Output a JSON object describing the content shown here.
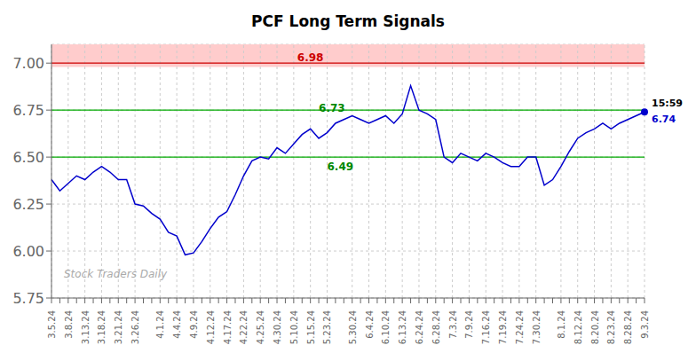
{
  "chart_data": {
    "type": "line",
    "title": "PCF Long Term Signals",
    "watermark": "Stock Traders Daily",
    "categories": [
      "3.5.24",
      null,
      "3.8.24",
      null,
      "3.13.24",
      null,
      "3.18.24",
      null,
      "3.21.24",
      null,
      "3.26.24",
      null,
      null,
      "4.1.24",
      null,
      "4.4.24",
      null,
      "4.9.24",
      null,
      "4.12.24",
      null,
      "4.17.24",
      null,
      "4.22.24",
      null,
      "4.25.24",
      null,
      "4.30.24",
      null,
      "5.10.24",
      null,
      "5.15.24",
      null,
      "5.23.24",
      null,
      null,
      "5.30.24",
      null,
      "6.4.24",
      null,
      "6.10.24",
      null,
      "6.13.24",
      null,
      "6.24.24",
      null,
      "6.28.24",
      null,
      "7.3.24",
      null,
      "7.9.24",
      null,
      "7.16.24",
      null,
      "7.19.24",
      null,
      "7.24.24",
      null,
      "7.30.24",
      null,
      null,
      "8.1.24",
      null,
      "8.12.24",
      null,
      "8.20.24",
      null,
      "8.23.24",
      null,
      "8.28.24",
      null,
      "9.3.24"
    ],
    "values": [
      6.38,
      6.32,
      6.36,
      6.4,
      6.38,
      6.42,
      6.45,
      6.42,
      6.38,
      6.38,
      6.25,
      6.24,
      6.2,
      6.17,
      6.1,
      6.08,
      5.98,
      5.99,
      6.05,
      6.12,
      6.18,
      6.21,
      6.3,
      6.4,
      6.48,
      6.5,
      6.49,
      6.55,
      6.52,
      6.57,
      6.62,
      6.65,
      6.6,
      6.63,
      6.68,
      6.7,
      6.72,
      6.7,
      6.68,
      6.7,
      6.72,
      6.68,
      6.73,
      6.88,
      6.75,
      6.73,
      6.7,
      6.5,
      6.47,
      6.52,
      6.5,
      6.48,
      6.52,
      6.5,
      6.47,
      6.45,
      6.45,
      6.5,
      6.5,
      6.35,
      6.38,
      6.45,
      6.53,
      6.6,
      6.63,
      6.65,
      6.68,
      6.65,
      6.68,
      6.7,
      6.72,
      6.74
    ],
    "color": "#0000cc",
    "ylim": [
      5.75,
      7.1
    ],
    "yticks": [
      5.75,
      {
        "value": 6.0,
        "label": "6.00"
      },
      6.25,
      {
        "value": 6.5,
        "label": "6.50"
      },
      6.75,
      {
        "value": 7.0,
        "label": "7.00"
      }
    ],
    "grid": true,
    "bands": [
      {
        "y1": 6.98,
        "y2": 7.1,
        "color": "#ffcccc"
      }
    ],
    "reference_lines": [
      {
        "y": 7.0,
        "color": "#cc0000"
      },
      {
        "y": 6.75,
        "color": "#00aa00"
      },
      {
        "y": 6.5,
        "color": "#00aa00"
      }
    ],
    "annotations": [
      {
        "text": "6.98",
        "y": 7.01,
        "color": "#cc0000"
      },
      {
        "text": "6.73",
        "y": 6.74,
        "color": "#008800"
      },
      {
        "text": "6.49",
        "y": 6.43,
        "color": "#008800"
      }
    ],
    "end_labels": [
      {
        "text": "15:59",
        "color": "#000000"
      },
      {
        "text": "6.74",
        "color": "#0000cc"
      }
    ]
  }
}
